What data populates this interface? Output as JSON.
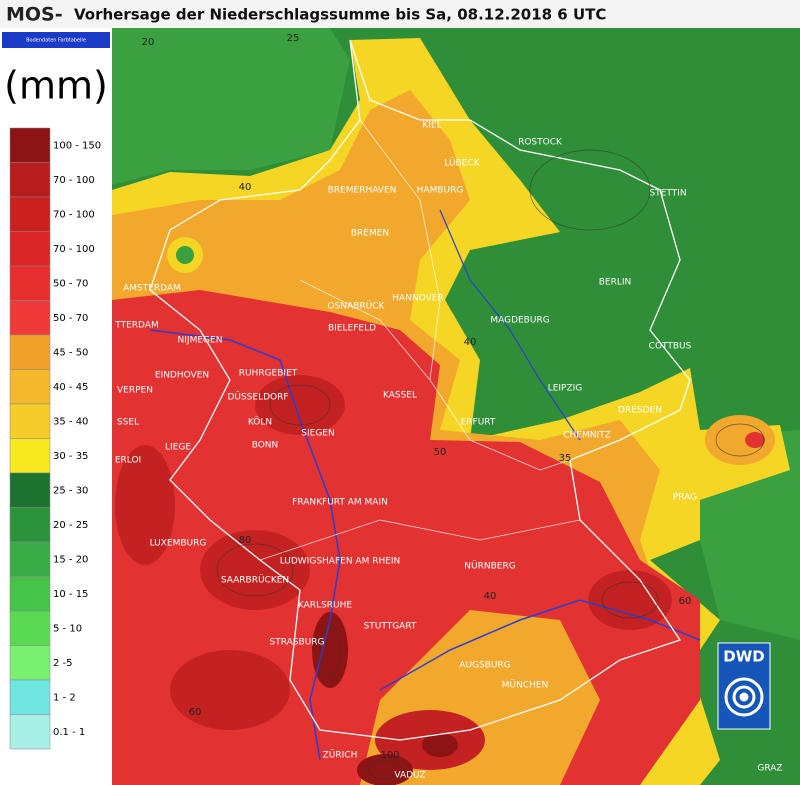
{
  "header": {
    "prefix": "MOS-",
    "title": "Vorhersage der Niederschlagssumme bis Sa, 08.12.2018 6 UTC"
  },
  "legend": {
    "caption": "Bodendaten Farbtabelle",
    "unit": "(mm)",
    "items": [
      {
        "label": "100 - 150",
        "color": "#8c1414"
      },
      {
        "label": "70 - 100",
        "color": "#b81c1c"
      },
      {
        "label": "70 - 100",
        "color": "#cc2020"
      },
      {
        "label": "70 - 100",
        "color": "#da2626"
      },
      {
        "label": "50 - 70",
        "color": "#e62e2e"
      },
      {
        "label": "50 - 70",
        "color": "#f03a3a"
      },
      {
        "label": "45 - 50",
        "color": "#f2a22a"
      },
      {
        "label": "40 - 45",
        "color": "#f4b82c"
      },
      {
        "label": "35 - 40",
        "color": "#f6cc2a"
      },
      {
        "label": "30 - 35",
        "color": "#f8e81e"
      },
      {
        "label": "25 - 30",
        "color": "#1c7430"
      },
      {
        "label": "20 - 25",
        "color": "#2a923a"
      },
      {
        "label": "15 - 20",
        "color": "#38ac46"
      },
      {
        "label": "10 - 15",
        "color": "#46c44a"
      },
      {
        "label": "5 - 10",
        "color": "#5ada52"
      },
      {
        "label": "2 -5",
        "color": "#78f070"
      },
      {
        "label": "1 - 2",
        "color": "#70e6e2"
      },
      {
        "label": "0.1 - 1",
        "color": "#a8f0e6"
      }
    ]
  },
  "map": {
    "cities": [
      "KIEL",
      "ROSTOCK",
      "LÜBECK",
      "BREMERHAVEN",
      "HAMBURG",
      "STETTIN",
      "BREMEN",
      "BERLIN",
      "AMSTERDAM",
      "HANNOVER",
      "OSNABRÜCK",
      "MAGDEBURG",
      "BIELEFELD",
      "TTERDAM",
      "NIJMEGEN",
      "COTTBUS",
      "RUHRGEBIET",
      "EINDHOVEN",
      "LEIPZIG",
      "VERPEN",
      "KASSEL",
      "DÜSSELDORF",
      "DRESDEN",
      "SSEL",
      "KÖLN",
      "ERFURT",
      "SIEGEN",
      "CHEMNITZ",
      "LIEGE",
      "PRAG",
      "FRANKFURT AM MAIN",
      "LUXEMBURG",
      "LUDWIGSHAFEN AM RHEIN",
      "NÜRNBERG",
      "SAARBRÜCKEN",
      "KARLSRUHE",
      "STUTTGART",
      "STRASBURG",
      "AUGSBURG",
      "MÜNCHEN",
      "ZÜRICH",
      "VADUZ",
      "GRAZ",
      "ERLOI",
      "BONN"
    ],
    "contour_labels": [
      20,
      25,
      40,
      40,
      50,
      35,
      80,
      40,
      60,
      60,
      100
    ],
    "logo": "DWD"
  }
}
